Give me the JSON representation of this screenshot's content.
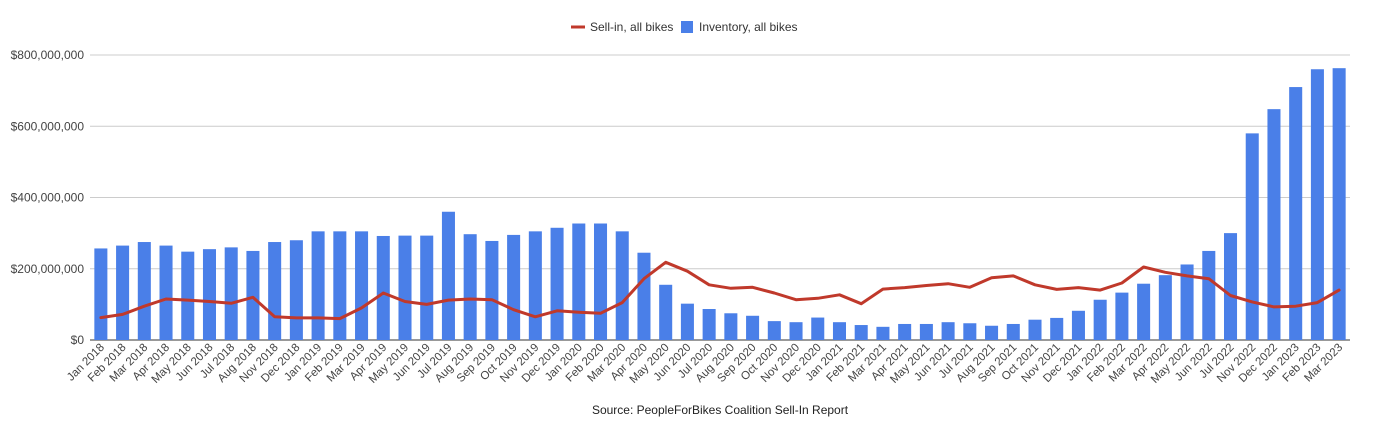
{
  "chart_data": {
    "type": "bar",
    "title": "",
    "xlabel": "",
    "ylabel": "",
    "source": "Source: PeopleForBikes Coalition Sell-In Report",
    "ylim": [
      0,
      800000000
    ],
    "yticks": [
      "$0",
      "$200,000,000",
      "$400,000,000",
      "$600,000,000",
      "$800,000,000"
    ],
    "ytick_values": [
      0,
      200000000,
      400000000,
      600000000,
      800000000
    ],
    "grid": true,
    "legend_position": "top",
    "categories": [
      "Jan 2018",
      "Feb 2018",
      "Mar 2018",
      "Apr 2018",
      "May 2018",
      "Jun 2018",
      "Jul 2018",
      "Aug 2018",
      "Nov 2018",
      "Dec 2018",
      "Jan 2019",
      "Feb 2019",
      "Mar 2019",
      "Apr 2019",
      "May 2019",
      "Jun 2019",
      "Jul 2019",
      "Aug 2019",
      "Sep 2019",
      "Oct 2019",
      "Nov 2019",
      "Dec 2019",
      "Jan 2020",
      "Feb 2020",
      "Mar 2020",
      "Apr 2020",
      "May 2020",
      "Jun 2020",
      "Jul 2020",
      "Aug 2020",
      "Sep 2020",
      "Oct 2020",
      "Nov 2020",
      "Dec 2020",
      "Jan 2021",
      "Feb 2021",
      "Mar 2021",
      "Apr 2021",
      "May 2021",
      "Jun 2021",
      "Jul 2021",
      "Aug 2021",
      "Sep 2021",
      "Oct 2021",
      "Nov 2021",
      "Dec 2021",
      "Jan 2022",
      "Feb 2022",
      "Mar 2022",
      "Apr 2022",
      "May 2022",
      "Jun 2022",
      "Jul 2022",
      "Nov 2022",
      "Dec 2022",
      "Jan 2023",
      "Feb 2023",
      "Mar 2023"
    ],
    "series": [
      {
        "name": "Inventory, all bikes",
        "type": "bar",
        "color": "#4a7fe8",
        "values": [
          257000000,
          265000000,
          275000000,
          265000000,
          248000000,
          255000000,
          260000000,
          250000000,
          275000000,
          280000000,
          305000000,
          305000000,
          305000000,
          292000000,
          293000000,
          293000000,
          360000000,
          297000000,
          278000000,
          295000000,
          305000000,
          315000000,
          327000000,
          327000000,
          305000000,
          245000000,
          155000000,
          102000000,
          87000000,
          75000000,
          68000000,
          53000000,
          50000000,
          63000000,
          50000000,
          42000000,
          37000000,
          45000000,
          45000000,
          50000000,
          47000000,
          40000000,
          45000000,
          57000000,
          62000000,
          82000000,
          113000000,
          133000000,
          158000000,
          182000000,
          212000000,
          250000000,
          300000000,
          580000000,
          648000000,
          710000000,
          760000000,
          763000000
        ]
      },
      {
        "name": "Sell-in, all bikes",
        "type": "line",
        "color": "#c0392b",
        "values": [
          63000000,
          72000000,
          95000000,
          115000000,
          112000000,
          108000000,
          103000000,
          120000000,
          65000000,
          62000000,
          62000000,
          60000000,
          90000000,
          132000000,
          108000000,
          100000000,
          112000000,
          115000000,
          113000000,
          85000000,
          65000000,
          82000000,
          78000000,
          75000000,
          105000000,
          172000000,
          218000000,
          193000000,
          155000000,
          145000000,
          148000000,
          132000000,
          113000000,
          117000000,
          127000000,
          102000000,
          143000000,
          147000000,
          153000000,
          158000000,
          148000000,
          175000000,
          180000000,
          155000000,
          142000000,
          147000000,
          140000000,
          160000000,
          205000000,
          190000000,
          180000000,
          172000000,
          125000000,
          107000000,
          93000000,
          95000000,
          105000000,
          140000000
        ]
      }
    ]
  }
}
